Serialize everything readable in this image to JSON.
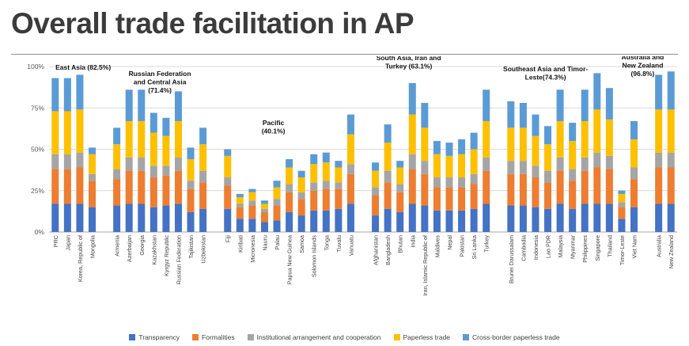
{
  "title": "Overall trade facilitation in AP",
  "chart_data": {
    "type": "bar",
    "stacked": true,
    "title": "Overall trade facilitation in AP",
    "xlabel": "",
    "ylabel": "",
    "ylim": [
      0,
      100
    ],
    "yticks": [
      "0%",
      "25%",
      "50%",
      "75%",
      "100%"
    ],
    "grid": true,
    "legend_position": "bottom",
    "groups": [
      {
        "name": "East Asia",
        "annotation_lines": [
          "East Asia (82.5%)"
        ],
        "countries": [
          "PRC",
          "Japan",
          "Korea, Republic of",
          "Mongolia"
        ]
      },
      {
        "name": "Russian Federation and Central Asia",
        "annotation_lines": [
          "Russian Federation",
          "and Central Asia",
          "(71.4%)"
        ],
        "countries": [
          "Armenia",
          "Azerbaijan",
          "Georgia",
          "Kazakhstan",
          "Kyrgyz Republic",
          "Russian Federation",
          "Tajikistan",
          "Uzbekistan"
        ]
      },
      {
        "name": "Pacific",
        "annotation_lines": [
          "Pacific",
          "(40.1%)"
        ],
        "countries": [
          "Fiji",
          "Kiribati",
          "Micronesia",
          "Nauru",
          "Palau",
          "Papua New Guinea",
          "Samoa",
          "Solomon Islands",
          "Tonga",
          "Tuvalu",
          "Vanuatu"
        ]
      },
      {
        "name": "South Asia, Iran and Turkey",
        "annotation_lines": [
          "South Asia, Iran and",
          "Turkey (63.1%)"
        ],
        "countries": [
          "Afghanistan",
          "Bangladesh",
          "Bhutan",
          "India",
          "Iran, Islamic Republic of",
          "Maldives",
          "Nepal",
          "Pakistan",
          "Sri Lanka",
          "Turkey"
        ]
      },
      {
        "name": "Southeast Asia and Timor-Leste",
        "annotation_lines": [
          "Southeast Asia and Timor-",
          "Leste(74.3%)"
        ],
        "countries": [
          "Brunei Darussalam",
          "Cambodia",
          "Indonesia",
          "Lao PDR",
          "Malaysia",
          "Myanmar",
          "Philippines",
          "Singapore",
          "Thailand",
          "Timor-Leste",
          "Viet Nam"
        ]
      },
      {
        "name": "Australia and New Zealand",
        "annotation_lines": [
          "Australia and",
          "New Zealand",
          "(96.8%)"
        ],
        "countries": [
          "Australia",
          "New Zealand"
        ]
      }
    ],
    "series": [
      {
        "name": "Transparency",
        "color": "#4472C4",
        "values": [
          17,
          17,
          17,
          15,
          16,
          17,
          17,
          15,
          16,
          17,
          12,
          14,
          14,
          8,
          8,
          6,
          7,
          12,
          10,
          13,
          13,
          14,
          17,
          10,
          14,
          12,
          17,
          16,
          13,
          13,
          13,
          14,
          17,
          16,
          16,
          15,
          14,
          17,
          14,
          17,
          17,
          17,
          8,
          15,
          17,
          17
        ]
      },
      {
        "name": "Formalities",
        "color": "#ED7D31",
        "values": [
          21,
          21,
          22,
          16,
          16,
          20,
          20,
          18,
          18,
          20,
          14,
          16,
          14,
          7,
          8,
          6,
          9,
          12,
          10,
          12,
          13,
          12,
          18,
          12,
          16,
          12,
          21,
          19,
          14,
          14,
          14,
          15,
          20,
          19,
          19,
          18,
          16,
          20,
          17,
          20,
          22,
          21,
          7,
          17,
          22,
          22
        ]
      },
      {
        "name": "Institutional arrangement and cooperation",
        "color": "#A5A5A5",
        "values": [
          9,
          9,
          9,
          4,
          6,
          8,
          8,
          7,
          6,
          8,
          5,
          7,
          5,
          2,
          3,
          2,
          4,
          5,
          4,
          5,
          5,
          4,
          6,
          5,
          7,
          5,
          9,
          8,
          6,
          6,
          6,
          6,
          8,
          8,
          8,
          7,
          7,
          8,
          7,
          8,
          9,
          8,
          3,
          7,
          9,
          9
        ]
      },
      {
        "name": "Paperless trade",
        "color": "#FFC000",
        "values": [
          26,
          26,
          26,
          12,
          15,
          22,
          22,
          20,
          18,
          22,
          13,
          16,
          13,
          4,
          5,
          3,
          7,
          10,
          9,
          11,
          11,
          9,
          18,
          10,
          17,
          10,
          24,
          20,
          14,
          13,
          14,
          15,
          22,
          20,
          20,
          18,
          16,
          22,
          17,
          22,
          26,
          22,
          5,
          17,
          26,
          26
        ]
      },
      {
        "name": "Cross-border paperless trade",
        "color": "#5B9BD5",
        "values": [
          20,
          20,
          21,
          4,
          10,
          19,
          19,
          12,
          11,
          18,
          7,
          10,
          4,
          2,
          2,
          2,
          4,
          5,
          4,
          6,
          6,
          4,
          12,
          5,
          11,
          4,
          19,
          15,
          8,
          8,
          9,
          10,
          19,
          16,
          15,
          13,
          11,
          19,
          11,
          19,
          22,
          19,
          2,
          11,
          21,
          23
        ]
      }
    ],
    "layout_hints": {
      "annotation_dx": [
        12,
        0,
        -20,
        -28,
        -34,
        -28
      ],
      "annotation_y": [
        17,
        25,
        87,
        5,
        19,
        4
      ],
      "annotation_line_height": 10.5
    }
  }
}
